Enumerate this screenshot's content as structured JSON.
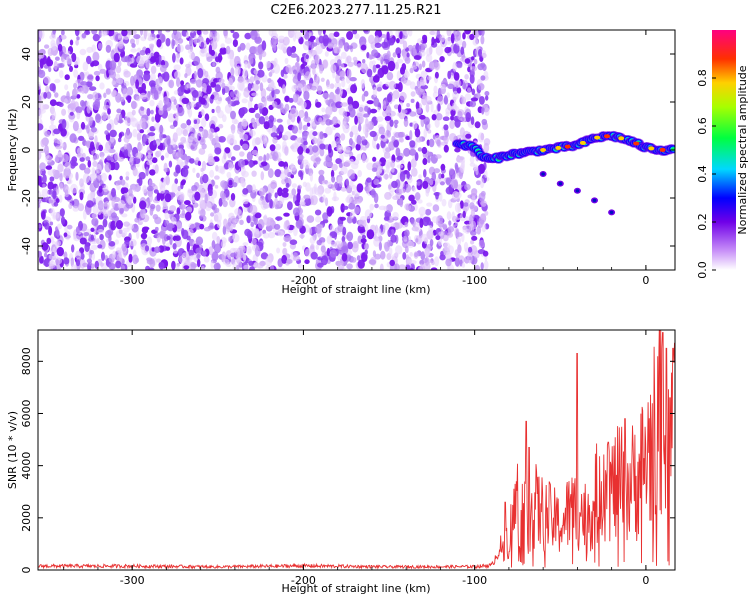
{
  "figure_title": "C2E6.2023.277.11.25.R21",
  "colors": {
    "snr_line": "#e83030",
    "noise_purple": "#8a3cf0",
    "axis": "#000000",
    "background": "#ffffff"
  },
  "chart_data": [
    {
      "type": "heatmap",
      "title": "C2E6.2023.277.11.25.R21",
      "xlabel": "Height of straight line (km)",
      "ylabel": "Frequency (Hz)",
      "xlim": [
        -355,
        17
      ],
      "ylim": [
        -50,
        50
      ],
      "xticks": [
        -300,
        -200,
        -100,
        0
      ],
      "xtick_labels": [
        "-300",
        "-200",
        "-100",
        "0"
      ],
      "yticks": [
        -40,
        -20,
        0,
        20,
        40
      ],
      "ytick_labels": [
        "-40",
        "-20",
        "0",
        "20",
        "40"
      ],
      "noise_region_x": [
        -355,
        -95
      ],
      "signal_track": {
        "x": [
          -110,
          -100,
          -95,
          -90,
          -80,
          -70,
          -60,
          -50,
          -40,
          -30,
          -20,
          -10,
          0,
          10,
          17
        ],
        "y": [
          3,
          1,
          -3,
          -4,
          -2,
          -1,
          0,
          1,
          2,
          5,
          6,
          4,
          1,
          0,
          0
        ]
      },
      "weak_branch": {
        "x": [
          -60,
          -50,
          -40,
          -30,
          -20
        ],
        "y": [
          -10,
          -14,
          -17,
          -21,
          -26
        ]
      },
      "colorbar": {
        "label": "Normalized spectral amplitude",
        "range": [
          0.0,
          1.0
        ],
        "ticks": [
          0.0,
          0.2,
          0.4,
          0.6,
          0.8
        ],
        "tick_labels": [
          "0.0",
          "0.2",
          "0.4",
          "0.6",
          "0.8"
        ]
      }
    },
    {
      "type": "line",
      "xlabel": "Height of straight line (km)",
      "ylabel": "SNR (10 * v/v)",
      "xlim": [
        -355,
        17
      ],
      "ylim": [
        0,
        9200
      ],
      "xticks": [
        -300,
        -200,
        -100,
        0
      ],
      "xtick_labels": [
        "-300",
        "-200",
        "-100",
        "0"
      ],
      "yticks": [
        0,
        2000,
        4000,
        6000,
        8000
      ],
      "ytick_labels": [
        "0",
        "2000",
        "4000",
        "6000",
        "8000"
      ],
      "series": [
        {
          "name": "SNR",
          "x": [
            -355,
            -300,
            -250,
            -200,
            -150,
            -100,
            -90,
            -85,
            -80,
            -75,
            -70,
            -65,
            -60,
            -55,
            -50,
            -45,
            -40,
            -35,
            -30,
            -25,
            -20,
            -15,
            -10,
            -5,
            0,
            5,
            10,
            15,
            17
          ],
          "y": [
            150,
            150,
            120,
            160,
            120,
            130,
            180,
            900,
            1500,
            3200,
            2200,
            2900,
            2500,
            2300,
            2000,
            2600,
            2800,
            2400,
            3000,
            4500,
            3600,
            3900,
            3800,
            4200,
            5000,
            6200,
            7200,
            6600,
            8100
          ]
        }
      ],
      "peaks": {
        "x": [
          -82,
          -70,
          -68,
          -40,
          -22,
          -12,
          10,
          12,
          14,
          16
        ],
        "y": [
          2600,
          5700,
          4700,
          8300,
          4900,
          5800,
          9100,
          8500,
          6600,
          8500
        ]
      }
    }
  ]
}
